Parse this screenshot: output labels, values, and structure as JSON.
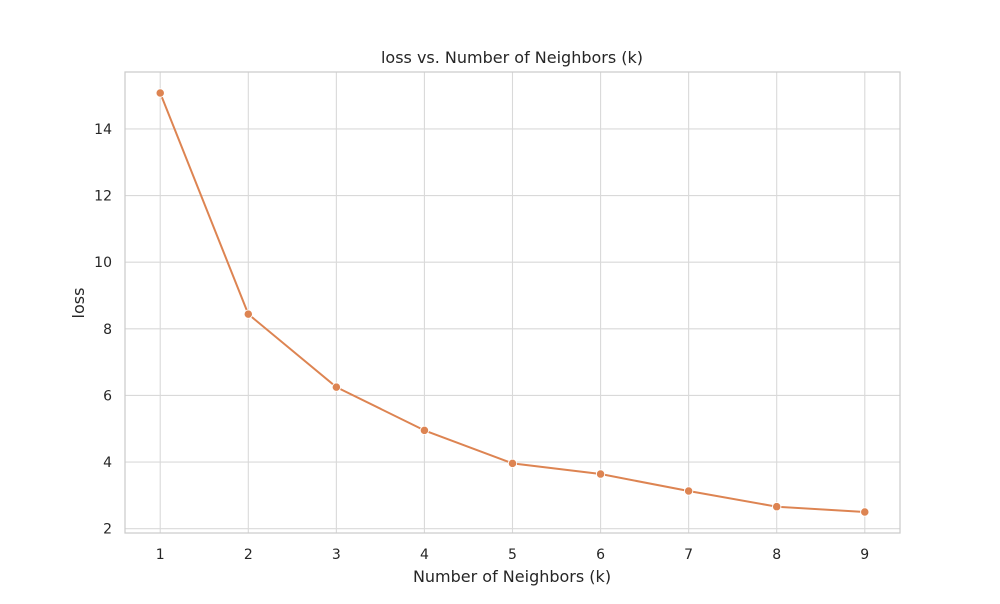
{
  "chart_data": {
    "type": "line",
    "title": "loss vs. Number of Neighbors (k)",
    "xlabel": "Number of Neighbors (k)",
    "ylabel": "loss",
    "x": [
      1,
      2,
      3,
      4,
      5,
      6,
      7,
      8,
      9
    ],
    "series": [
      {
        "values": [
          15.08,
          8.44,
          6.25,
          4.95,
          3.96,
          3.64,
          3.13,
          2.66,
          2.5
        ],
        "color": "#dd8452",
        "marker": "circle"
      }
    ],
    "xlim": [
      0.6,
      9.4
    ],
    "ylim": [
      1.87,
      15.71
    ],
    "xticks": [
      1,
      2,
      3,
      4,
      5,
      6,
      7,
      8,
      9
    ],
    "yticks": [
      2,
      4,
      6,
      8,
      10,
      12,
      14
    ],
    "grid": true,
    "style": {
      "grid_color": "#d9d9d9",
      "frame_color": "#cccccc",
      "line_color": "#dd8452",
      "marker_edge_color": "#ffffff"
    }
  }
}
